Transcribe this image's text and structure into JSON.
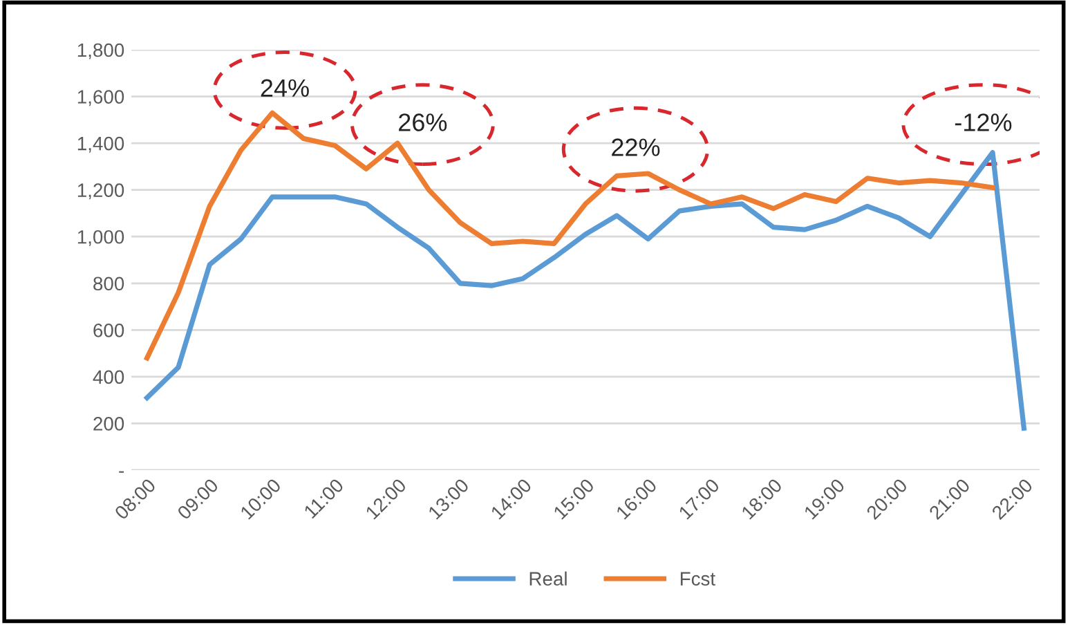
{
  "chart_data": {
    "type": "line",
    "categories": [
      "08:00",
      null,
      "09:00",
      null,
      "10:00",
      null,
      "11:00",
      null,
      "12:00",
      null,
      "13:00",
      null,
      "14:00",
      null,
      "15:00",
      null,
      "16:00",
      null,
      "17:00",
      null,
      "18:00",
      null,
      "19:00",
      null,
      "20:00",
      null,
      "21:00",
      null,
      "22:00"
    ],
    "series": [
      {
        "name": "Real",
        "color": "#5b9bd5",
        "values": [
          310,
          440,
          880,
          990,
          1170,
          1170,
          1170,
          1140,
          1040,
          950,
          800,
          790,
          820,
          910,
          1010,
          1090,
          990,
          1110,
          1130,
          1140,
          1040,
          1030,
          1070,
          1130,
          1080,
          1000,
          1180,
          1360,
          180
        ]
      },
      {
        "name": "Fcst",
        "color": "#ed7d31",
        "values": [
          480,
          760,
          1130,
          1370,
          1530,
          1420,
          1390,
          1290,
          1400,
          1200,
          1060,
          970,
          980,
          970,
          1140,
          1260,
          1270,
          1200,
          1140,
          1170,
          1120,
          1180,
          1150,
          1250,
          1230,
          1240,
          1230,
          1210,
          null
        ]
      }
    ],
    "ylim": [
      0,
      1800
    ],
    "yticks": [
      {
        "value": 0,
        "label": "-"
      },
      {
        "value": 200,
        "label": "200"
      },
      {
        "value": 400,
        "label": "400"
      },
      {
        "value": 600,
        "label": "600"
      },
      {
        "value": 800,
        "label": "800"
      },
      {
        "value": 1000,
        "label": "1,000"
      },
      {
        "value": 1200,
        "label": "1,200"
      },
      {
        "value": 1400,
        "label": "1,400"
      },
      {
        "value": 1600,
        "label": "1,600"
      },
      {
        "value": 1800,
        "label": "1,800"
      }
    ],
    "grid": "y",
    "legend": "bottom",
    "marker": "none",
    "line_style": "solid",
    "annotations": [
      "24%",
      "26%",
      "22%",
      "-12%"
    ]
  }
}
